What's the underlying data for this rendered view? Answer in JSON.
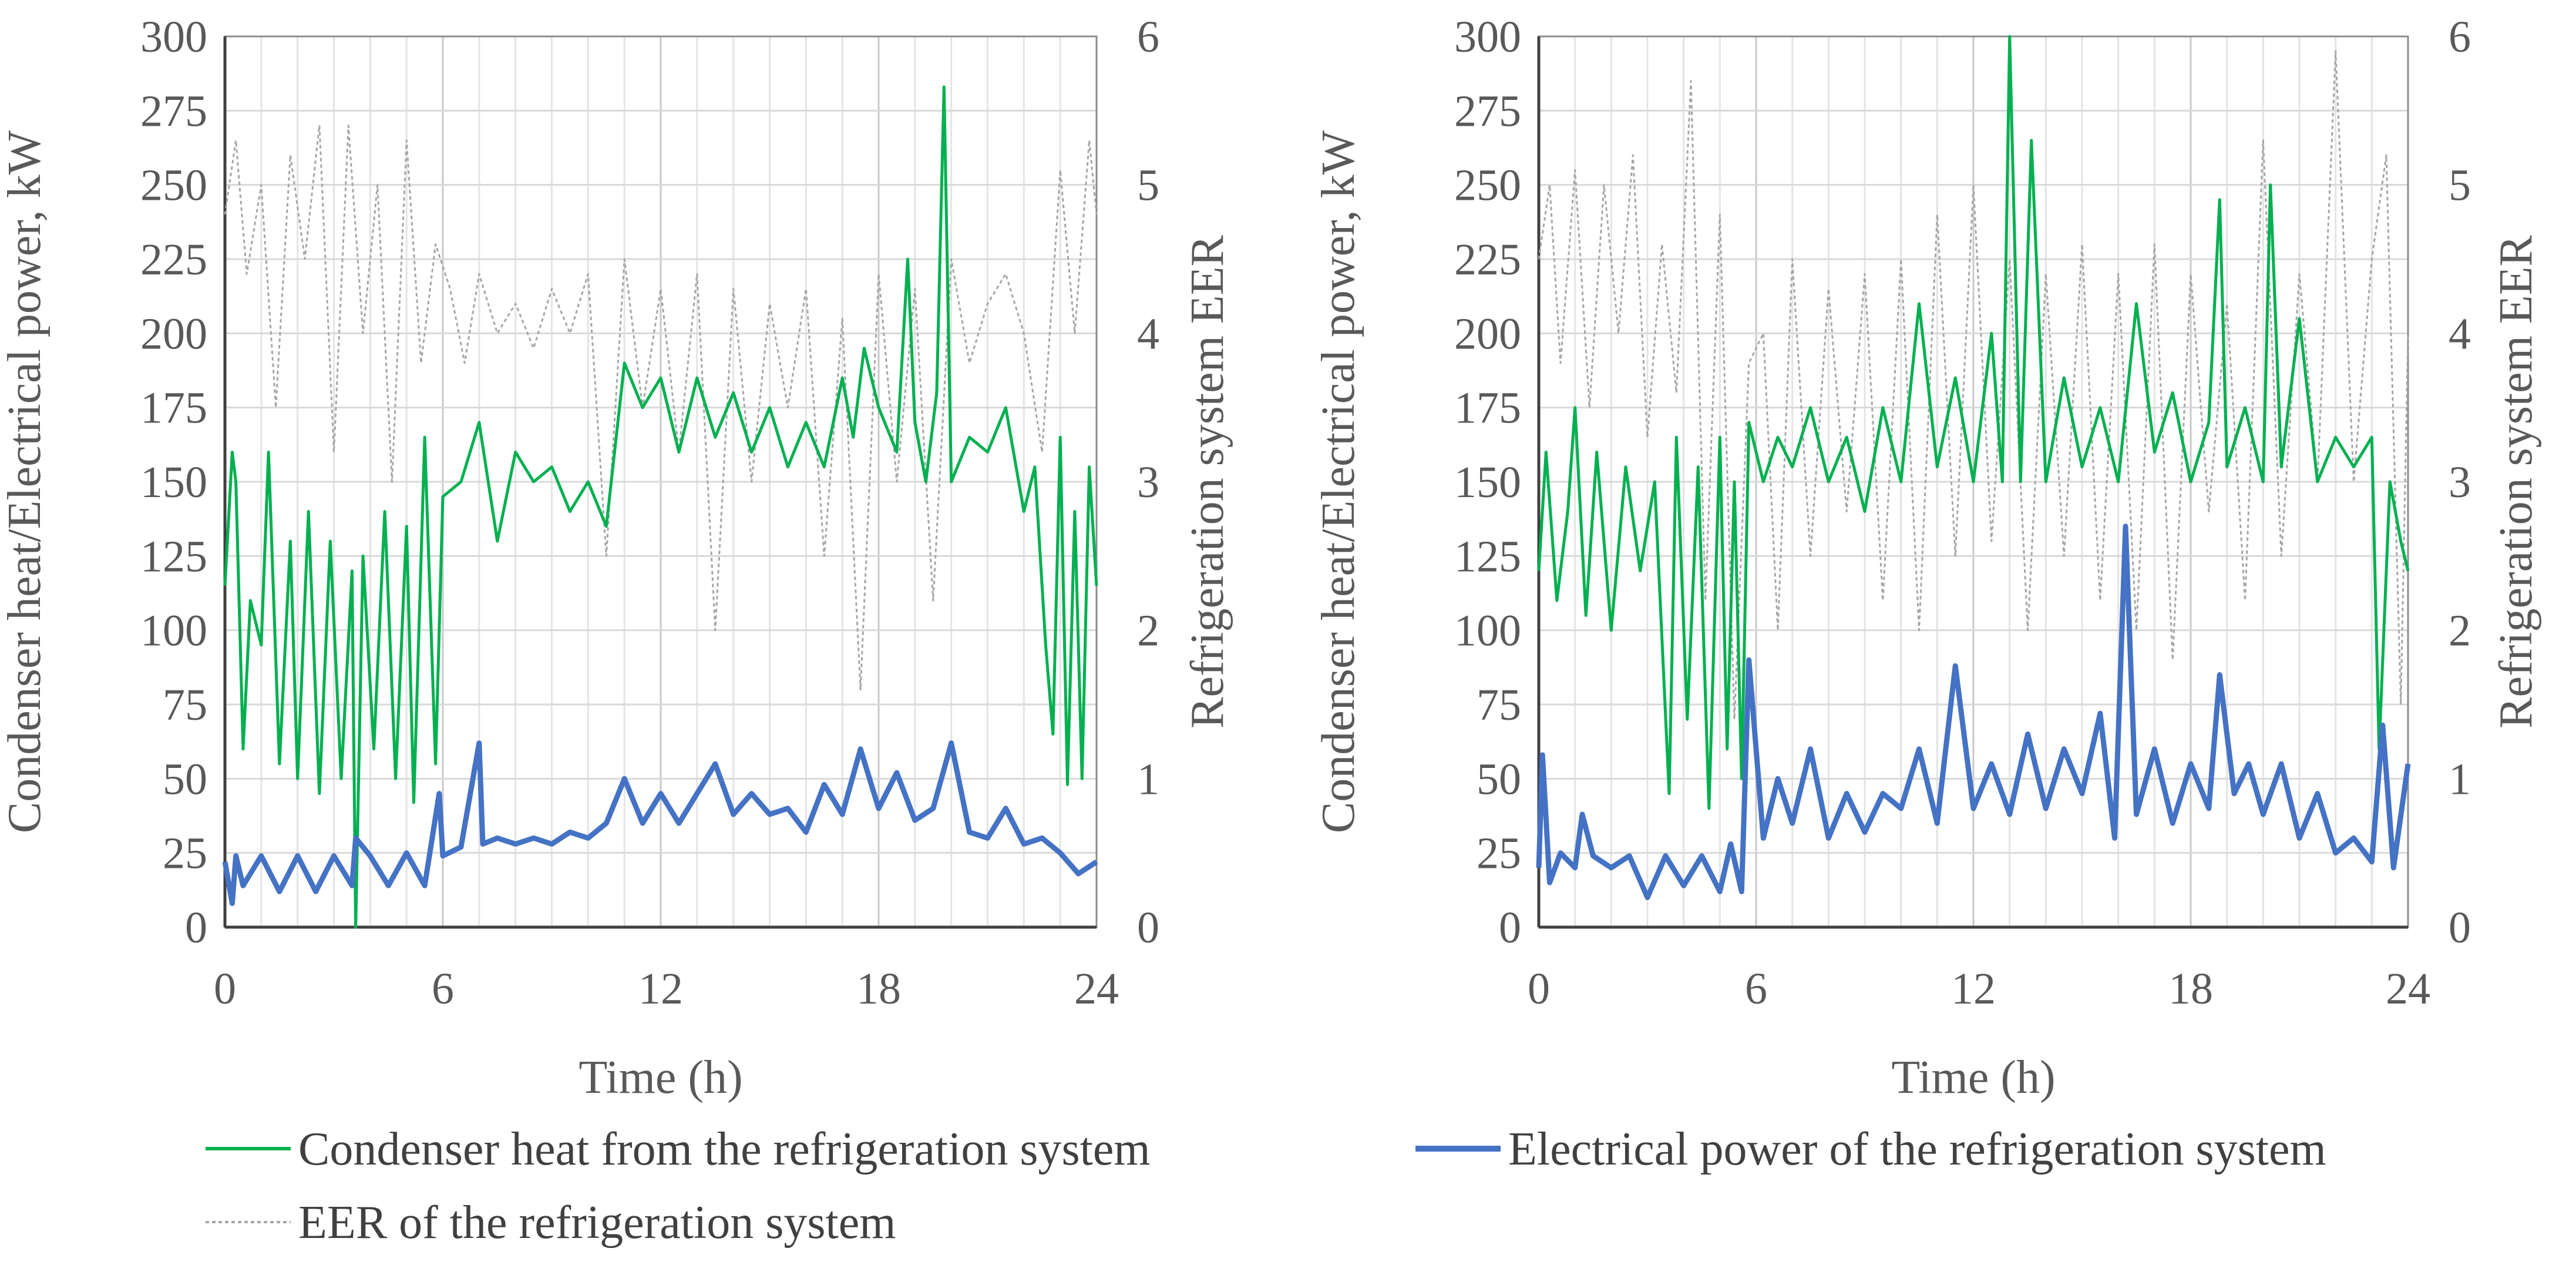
{
  "chart_data": [
    {
      "type": "line",
      "panel": "left",
      "xlabel": "Time (h)",
      "ylabel": "Condenser heat/Electrical power, kW",
      "y2label": "Refrigeration system EER",
      "xlim": [
        0,
        24
      ],
      "ylim": [
        0,
        300
      ],
      "y2lim": [
        0,
        6
      ],
      "xticks": [
        "0",
        "6",
        "12",
        "18",
        "24"
      ],
      "yticks": [
        "0",
        "25",
        "50",
        "75",
        "100",
        "125",
        "150",
        "175",
        "200",
        "225",
        "250",
        "275",
        "300"
      ],
      "y2ticks": [
        "0",
        "1",
        "2",
        "3",
        "4",
        "5",
        "6"
      ],
      "grid": true,
      "series": [
        {
          "name": "Condenser heat from the refrigeration system",
          "axis": "left",
          "color": "#00B050",
          "x": [
            0,
            0.2,
            0.3,
            0.5,
            0.7,
            1.0,
            1.2,
            1.5,
            1.8,
            2.0,
            2.3,
            2.6,
            2.9,
            3.2,
            3.5,
            3.6,
            3.8,
            4.1,
            4.4,
            4.7,
            5.0,
            5.2,
            5.5,
            5.8,
            6.0,
            6.5,
            7.0,
            7.5,
            8.0,
            8.5,
            9.0,
            9.5,
            10.0,
            10.5,
            11.0,
            11.5,
            12.0,
            12.5,
            13.0,
            13.5,
            14.0,
            14.5,
            15.0,
            15.5,
            16.0,
            16.5,
            17.0,
            17.3,
            17.6,
            18.0,
            18.5,
            18.8,
            19.0,
            19.3,
            19.6,
            19.8,
            20.0,
            20.5,
            21.0,
            21.5,
            22.0,
            22.3,
            22.6,
            22.8,
            23.0,
            23.2,
            23.4,
            23.6,
            23.8,
            24.0
          ],
          "values": [
            115,
            160,
            150,
            60,
            110,
            95,
            160,
            55,
            130,
            50,
            140,
            45,
            130,
            50,
            120,
            0,
            125,
            60,
            140,
            50,
            135,
            42,
            165,
            55,
            145,
            150,
            170,
            130,
            160,
            150,
            155,
            140,
            150,
            135,
            190,
            175,
            185,
            160,
            185,
            165,
            180,
            160,
            175,
            155,
            170,
            155,
            185,
            165,
            195,
            175,
            160,
            225,
            170,
            150,
            180,
            283,
            150,
            165,
            160,
            175,
            140,
            155,
            95,
            65,
            165,
            48,
            140,
            50,
            155,
            115
          ]
        },
        {
          "name": "Electrical power of the refrigeration system",
          "axis": "left",
          "color": "#4472C4",
          "x": [
            0,
            0.2,
            0.3,
            0.5,
            1.0,
            1.5,
            2.0,
            2.5,
            3.0,
            3.5,
            3.6,
            4.0,
            4.5,
            5.0,
            5.5,
            5.9,
            6.0,
            6.5,
            7.0,
            7.1,
            7.5,
            8.0,
            8.5,
            9.0,
            9.5,
            10.0,
            10.5,
            11.0,
            11.5,
            12.0,
            12.5,
            13.0,
            13.5,
            14.0,
            14.5,
            15.0,
            15.5,
            16.0,
            16.5,
            17.0,
            17.5,
            18.0,
            18.5,
            19.0,
            19.5,
            20.0,
            20.5,
            21.0,
            21.5,
            22.0,
            22.5,
            23.0,
            23.5,
            24.0
          ],
          "values": [
            22,
            8,
            24,
            14,
            24,
            12,
            24,
            12,
            24,
            14,
            30,
            24,
            14,
            25,
            14,
            45,
            24,
            27,
            62,
            28,
            30,
            28,
            30,
            28,
            32,
            30,
            35,
            50,
            35,
            45,
            35,
            45,
            55,
            38,
            45,
            38,
            40,
            32,
            48,
            38,
            60,
            40,
            52,
            36,
            40,
            62,
            32,
            30,
            40,
            28,
            30,
            25,
            18,
            22
          ]
        },
        {
          "name": "EER of the refrigeration system",
          "axis": "right",
          "color": "#A6A6A6",
          "x": [
            0,
            0.3,
            0.6,
            1.0,
            1.4,
            1.8,
            2.2,
            2.6,
            3.0,
            3.4,
            3.8,
            4.2,
            4.6,
            5.0,
            5.4,
            5.8,
            6.2,
            6.6,
            7.0,
            7.5,
            8.0,
            8.5,
            9.0,
            9.5,
            10.0,
            10.5,
            11.0,
            11.5,
            12.0,
            12.5,
            13.0,
            13.5,
            14.0,
            14.5,
            15.0,
            15.5,
            16.0,
            16.5,
            17.0,
            17.5,
            18.0,
            18.5,
            19.0,
            19.5,
            20.0,
            20.5,
            21.0,
            21.5,
            22.0,
            22.5,
            23.0,
            23.4,
            23.8,
            24.0
          ],
          "values": [
            4.8,
            5.3,
            4.4,
            5.0,
            3.5,
            5.2,
            4.5,
            5.4,
            3.2,
            5.4,
            4.0,
            5.0,
            3.0,
            5.3,
            3.8,
            4.6,
            4.3,
            3.8,
            4.4,
            4.0,
            4.2,
            3.9,
            4.3,
            4.0,
            4.4,
            2.5,
            4.5,
            3.5,
            4.3,
            3.2,
            4.4,
            2.0,
            4.3,
            3.0,
            4.2,
            3.5,
            4.3,
            2.5,
            4.1,
            1.6,
            4.4,
            3.0,
            4.3,
            2.2,
            4.5,
            3.8,
            4.2,
            4.4,
            4.0,
            3.2,
            5.1,
            4.0,
            5.3,
            4.8
          ]
        }
      ]
    },
    {
      "type": "line",
      "panel": "right",
      "xlabel": "Time (h)",
      "ylabel": "Condenser heat/Electrical power, kW",
      "y2label": "Refrigeration system EER",
      "xlim": [
        0,
        24
      ],
      "ylim": [
        0,
        300
      ],
      "y2lim": [
        0,
        6
      ],
      "xticks": [
        "0",
        "6",
        "12",
        "18",
        "24"
      ],
      "yticks": [
        "0",
        "25",
        "50",
        "75",
        "100",
        "125",
        "150",
        "175",
        "200",
        "225",
        "250",
        "275",
        "300"
      ],
      "y2ticks": [
        "0",
        "1",
        "2",
        "3",
        "4",
        "5",
        "6"
      ],
      "grid": true,
      "series": [
        {
          "name": "Condenser heat from the refrigeration system",
          "axis": "left",
          "color": "#00B050",
          "x": [
            0,
            0.2,
            0.5,
            0.8,
            1.0,
            1.3,
            1.6,
            2.0,
            2.4,
            2.8,
            3.2,
            3.6,
            3.8,
            4.1,
            4.4,
            4.7,
            5.0,
            5.2,
            5.4,
            5.6,
            5.8,
            6.2,
            6.6,
            7.0,
            7.5,
            8.0,
            8.5,
            9.0,
            9.5,
            10.0,
            10.5,
            11.0,
            11.5,
            12.0,
            12.5,
            12.8,
            13.0,
            13.3,
            13.6,
            14.0,
            14.5,
            15.0,
            15.5,
            16.0,
            16.5,
            17.0,
            17.5,
            18.0,
            18.5,
            18.8,
            19.0,
            19.5,
            20.0,
            20.2,
            20.5,
            21.0,
            21.5,
            22.0,
            22.5,
            23.0,
            23.2,
            23.5,
            23.8,
            24.0
          ],
          "values": [
            120,
            160,
            110,
            140,
            175,
            105,
            160,
            100,
            155,
            120,
            150,
            45,
            165,
            70,
            155,
            40,
            165,
            60,
            150,
            50,
            170,
            150,
            165,
            155,
            175,
            150,
            165,
            140,
            175,
            150,
            210,
            155,
            185,
            150,
            200,
            150,
            300,
            150,
            265,
            150,
            185,
            155,
            175,
            150,
            210,
            160,
            180,
            150,
            170,
            245,
            155,
            175,
            150,
            250,
            155,
            205,
            150,
            165,
            155,
            165,
            60,
            150,
            130,
            120
          ]
        },
        {
          "name": "Electrical power of the refrigeration system",
          "axis": "left",
          "color": "#4472C4",
          "x": [
            0,
            0.1,
            0.3,
            0.6,
            1.0,
            1.2,
            1.5,
            2.0,
            2.5,
            3.0,
            3.5,
            4.0,
            4.5,
            5.0,
            5.3,
            5.6,
            5.8,
            6.2,
            6.6,
            7.0,
            7.5,
            8.0,
            8.5,
            9.0,
            9.5,
            10.0,
            10.5,
            11.0,
            11.5,
            12.0,
            12.5,
            13.0,
            13.5,
            14.0,
            14.5,
            15.0,
            15.5,
            15.9,
            16.2,
            16.5,
            17.0,
            17.5,
            18.0,
            18.5,
            18.8,
            19.2,
            19.6,
            20.0,
            20.5,
            21.0,
            21.5,
            22.0,
            22.5,
            23.0,
            23.3,
            23.6,
            24.0
          ],
          "values": [
            20,
            58,
            15,
            25,
            20,
            38,
            24,
            20,
            24,
            10,
            24,
            14,
            24,
            12,
            28,
            12,
            90,
            30,
            50,
            35,
            60,
            30,
            45,
            32,
            45,
            40,
            60,
            35,
            88,
            40,
            55,
            38,
            65,
            40,
            60,
            45,
            72,
            30,
            135,
            38,
            60,
            35,
            55,
            40,
            85,
            45,
            55,
            38,
            55,
            30,
            45,
            25,
            30,
            22,
            68,
            20,
            55
          ]
        },
        {
          "name": "EER of the refrigeration system",
          "axis": "right",
          "color": "#A6A6A6",
          "x": [
            0,
            0.3,
            0.6,
            1.0,
            1.4,
            1.8,
            2.2,
            2.6,
            3.0,
            3.4,
            3.8,
            4.2,
            4.6,
            5.0,
            5.4,
            5.8,
            6.2,
            6.6,
            7.0,
            7.5,
            8.0,
            8.5,
            9.0,
            9.5,
            10.0,
            10.5,
            11.0,
            11.5,
            12.0,
            12.5,
            13.0,
            13.5,
            14.0,
            14.5,
            15.0,
            15.5,
            16.0,
            16.5,
            17.0,
            17.5,
            18.0,
            18.5,
            19.0,
            19.5,
            20.0,
            20.5,
            21.0,
            21.5,
            22.0,
            22.5,
            23.0,
            23.4,
            23.8,
            24.0
          ],
          "values": [
            4.5,
            5.0,
            3.8,
            5.1,
            3.5,
            5.0,
            4.0,
            5.2,
            3.3,
            4.6,
            3.6,
            5.7,
            2.2,
            4.8,
            1.4,
            3.8,
            4.0,
            2.0,
            4.5,
            2.5,
            4.3,
            2.8,
            4.4,
            2.2,
            4.5,
            2.0,
            4.8,
            2.5,
            5.0,
            2.6,
            4.5,
            2.0,
            4.4,
            2.5,
            4.6,
            2.2,
            4.4,
            2.0,
            4.6,
            1.8,
            4.4,
            2.8,
            4.2,
            2.2,
            5.3,
            2.5,
            4.4,
            3.0,
            5.9,
            3.0,
            4.5,
            5.2,
            1.5,
            4.0
          ]
        }
      ]
    }
  ],
  "legend": {
    "items": [
      {
        "label": "Condenser heat from the refrigeration system",
        "color": "#00B050",
        "style": "solid-thin"
      },
      {
        "label": "Electrical power of the refrigeration system",
        "color": "#4472C4",
        "style": "solid-thick"
      },
      {
        "label": "EER of the refrigeration system",
        "color": "#A6A6A6",
        "style": "dotted"
      }
    ]
  }
}
